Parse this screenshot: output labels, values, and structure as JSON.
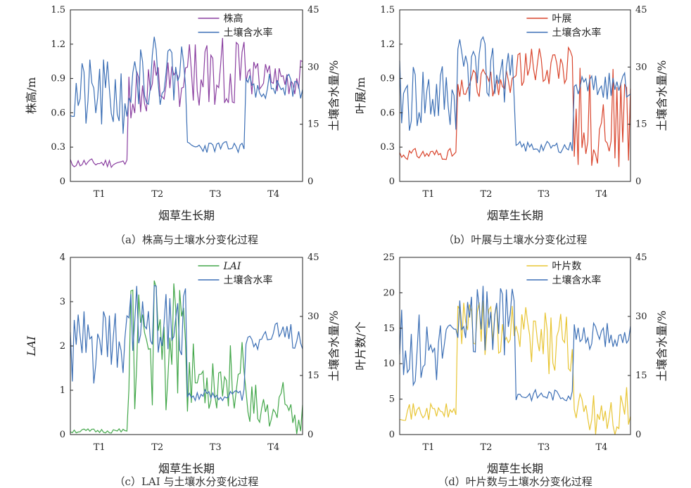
{
  "colors": {
    "soil": "#3c6fb5",
    "plant_height": "#8a3fa0",
    "leaf_spread": "#d9442c",
    "lai": "#43a74a",
    "leaf_count": "#e8c534"
  },
  "chart_data": [
    {
      "type": "line",
      "caption": "（a）株高与土壤水分变化过程",
      "xlabel": "烟草生长期",
      "ylabel_left": "株高/m",
      "ylabel_right": "土壤含水量/%",
      "x_ticks": [
        "T1",
        "T2",
        "T3",
        "T4"
      ],
      "ylim_left": [
        0,
        1.5
      ],
      "yticks_left": [
        "0",
        "0.3",
        "0.6",
        "0.9",
        "1.2",
        "1.5"
      ],
      "ylim_right": [
        0,
        45
      ],
      "yticks_right": [
        "0",
        "15",
        "30",
        "45"
      ],
      "legend": [
        "株高",
        "土壤含水率"
      ],
      "legend_position": "top-right",
      "series": [
        {
          "name": "株高",
          "axis": "left",
          "color_key": "plant_height",
          "segments": [
            {
              "start": 0.0,
              "end": 0.25,
              "mean": 0.16,
              "amp": 0.04,
              "seed": 11
            },
            {
              "start": 0.25,
              "end": 0.5,
              "mean": 0.78,
              "amp": 0.28,
              "seed": 12
            },
            {
              "start": 0.5,
              "end": 0.75,
              "mean": 0.95,
              "amp": 0.32,
              "seed": 13
            },
            {
              "start": 0.75,
              "end": 1.0,
              "mean": 0.9,
              "amp": 0.16,
              "seed": 14
            }
          ]
        },
        {
          "name": "土壤含水率",
          "axis": "right",
          "color_key": "soil",
          "segments": [
            {
              "start": 0.0,
              "end": 0.25,
              "mean": 22,
              "amp": 10,
              "seed": 21
            },
            {
              "start": 0.25,
              "end": 0.5,
              "mean": 29,
              "amp": 9,
              "seed": 22
            },
            {
              "start": 0.5,
              "end": 0.75,
              "mean": 9,
              "amp": 1.5,
              "seed": 23
            },
            {
              "start": 0.75,
              "end": 1.0,
              "mean": 25,
              "amp": 3.5,
              "seed": 24
            }
          ]
        }
      ]
    },
    {
      "type": "line",
      "caption": "（b）叶展与土壤水分变化过程",
      "xlabel": "烟草生长期",
      "ylabel_left": "叶展/m",
      "ylabel_right": "土壤含水量/%",
      "x_ticks": [
        "T1",
        "T2",
        "T3",
        "T4"
      ],
      "ylim_left": [
        0,
        1.5
      ],
      "yticks_left": [
        "0",
        "0.3",
        "0.6",
        "0.9",
        "1.2",
        "1.5"
      ],
      "ylim_right": [
        0,
        45
      ],
      "yticks_right": [
        "0",
        "15",
        "30",
        "45"
      ],
      "legend": [
        "叶展",
        "土壤含水率"
      ],
      "legend_position": "top-right",
      "series": [
        {
          "name": "叶展",
          "axis": "left",
          "color_key": "leaf_spread",
          "segments": [
            {
              "start": 0.0,
              "end": 0.25,
              "mean": 0.24,
              "amp": 0.05,
              "seed": 31
            },
            {
              "start": 0.25,
              "end": 0.5,
              "mean": 0.86,
              "amp": 0.12,
              "seed": 32
            },
            {
              "start": 0.5,
              "end": 0.75,
              "mean": 1.0,
              "amp": 0.18,
              "seed": 33
            },
            {
              "start": 0.75,
              "end": 1.0,
              "mean": 0.55,
              "amp": 0.45,
              "seed": 34
            }
          ]
        },
        {
          "name": "土壤含水率",
          "axis": "right",
          "color_key": "soil",
          "segments": [
            {
              "start": 0.0,
              "end": 0.25,
              "mean": 22,
              "amp": 10,
              "seed": 41
            },
            {
              "start": 0.25,
              "end": 0.5,
              "mean": 29,
              "amp": 9,
              "seed": 42
            },
            {
              "start": 0.5,
              "end": 0.75,
              "mean": 9,
              "amp": 1.5,
              "seed": 43
            },
            {
              "start": 0.75,
              "end": 1.0,
              "mean": 25,
              "amp": 3.5,
              "seed": 44
            }
          ]
        }
      ]
    },
    {
      "type": "line",
      "caption": "（c）LAI 与土壤水分变化过程",
      "xlabel": "烟草生长期",
      "ylabel_left": "LAI",
      "ylabel_right": "土壤含水量/%",
      "x_ticks": [
        "T1",
        "T2",
        "T3",
        "T4"
      ],
      "ylim_left": [
        0,
        4
      ],
      "yticks_left": [
        "0",
        "1",
        "2",
        "3",
        "4"
      ],
      "ylim_right": [
        0,
        45
      ],
      "yticks_right": [
        "0",
        "15",
        "30",
        "45"
      ],
      "legend": [
        "LAI",
        "土壤含水率"
      ],
      "legend_position": "top-right",
      "series": [
        {
          "name": "LAI",
          "axis": "left",
          "color_key": "lai",
          "segments": [
            {
              "start": 0.0,
              "end": 0.25,
              "mean": 0.08,
              "amp": 0.05,
              "seed": 51
            },
            {
              "start": 0.25,
              "end": 0.5,
              "mean": 2.0,
              "amp": 1.5,
              "seed": 52
            },
            {
              "start": 0.5,
              "end": 0.75,
              "mean": 1.3,
              "amp": 0.8,
              "seed": 53
            },
            {
              "start": 0.75,
              "end": 1.0,
              "mean": 0.5,
              "amp": 0.7,
              "seed": 54
            }
          ]
        },
        {
          "name": "土壤含水率",
          "axis": "right",
          "color_key": "soil",
          "segments": [
            {
              "start": 0.0,
              "end": 0.25,
              "mean": 22,
              "amp": 10,
              "seed": 61
            },
            {
              "start": 0.25,
              "end": 0.5,
              "mean": 29,
              "amp": 9,
              "seed": 62
            },
            {
              "start": 0.5,
              "end": 0.75,
              "mean": 10,
              "amp": 1.5,
              "seed": 63
            },
            {
              "start": 0.75,
              "end": 1.0,
              "mean": 25,
              "amp": 3.5,
              "seed": 64
            }
          ]
        }
      ]
    },
    {
      "type": "line",
      "caption": "（d）叶片数与土壤水分变化过程",
      "xlabel": "烟草生长期",
      "ylabel_left": "叶片数/个",
      "ylabel_right": "土壤含水量/%",
      "x_ticks": [
        "T1",
        "T2",
        "T3",
        "T4"
      ],
      "ylim_left": [
        0,
        25
      ],
      "yticks_left": [
        "0",
        "5",
        "10",
        "15",
        "20",
        "25"
      ],
      "ylim_right": [
        0,
        45
      ],
      "yticks_right": [
        "0",
        "15",
        "30",
        "45"
      ],
      "legend": [
        "叶片数",
        "土壤含水率"
      ],
      "legend_position": "top-right",
      "series": [
        {
          "name": "叶片数",
          "axis": "left",
          "color_key": "leaf_count",
          "segments": [
            {
              "start": 0.0,
              "end": 0.25,
              "mean": 3.2,
              "amp": 1.2,
              "seed": 71
            },
            {
              "start": 0.25,
              "end": 0.5,
              "mean": 15,
              "amp": 4,
              "seed": 72
            },
            {
              "start": 0.5,
              "end": 0.75,
              "mean": 13,
              "amp": 5,
              "seed": 73
            },
            {
              "start": 0.75,
              "end": 1.0,
              "mean": 3,
              "amp": 4,
              "seed": 74
            }
          ]
        },
        {
          "name": "土壤含水率",
          "axis": "right",
          "color_key": "soil",
          "segments": [
            {
              "start": 0.0,
              "end": 0.25,
              "mean": 22,
              "amp": 10,
              "seed": 81
            },
            {
              "start": 0.25,
              "end": 0.5,
              "mean": 29,
              "amp": 9,
              "seed": 82
            },
            {
              "start": 0.5,
              "end": 0.75,
              "mean": 10,
              "amp": 1.5,
              "seed": 83
            },
            {
              "start": 0.75,
              "end": 1.0,
              "mean": 25,
              "amp": 3.5,
              "seed": 84
            }
          ]
        }
      ]
    }
  ]
}
